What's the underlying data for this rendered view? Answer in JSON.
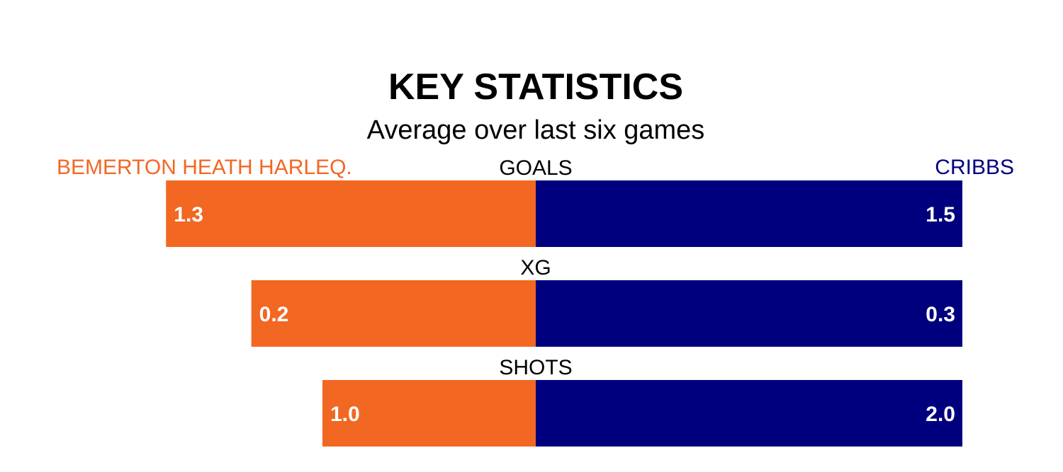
{
  "chart_data": {
    "type": "bar",
    "title": "KEY STATISTICS",
    "subtitle": "Average over last six games",
    "categories": [
      "GOALS",
      "XG",
      "SHOTS"
    ],
    "series": [
      {
        "name": "BEMERTON HEATH HARLEQ.",
        "values": [
          1.3,
          0.2,
          1.0
        ],
        "labels": [
          "1.3",
          "0.2",
          "1.0"
        ],
        "color": "#f26722"
      },
      {
        "name": "CRIBBS",
        "values": [
          1.5,
          0.3,
          2.0
        ],
        "labels": [
          "1.5",
          "0.3",
          "2.0"
        ],
        "color": "#00007f"
      }
    ],
    "grid": false
  }
}
